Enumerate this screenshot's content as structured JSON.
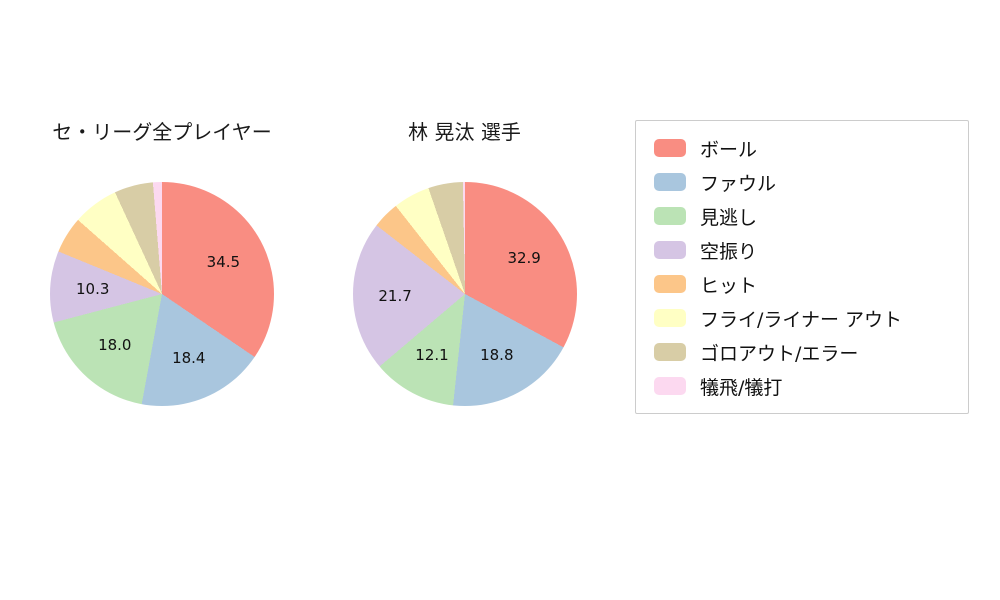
{
  "palette": [
    "#f98d82",
    "#a9c6de",
    "#bbe3b5",
    "#d5c5e4",
    "#fcc689",
    "#ffffc4",
    "#d8cda6",
    "#fcd9f0"
  ],
  "legend": {
    "items": [
      {
        "label": "ボール",
        "color": "#f98d82"
      },
      {
        "label": "ファウル",
        "color": "#a9c6de"
      },
      {
        "label": "見逃し",
        "color": "#bbe3b5"
      },
      {
        "label": "空振り",
        "color": "#d5c5e4"
      },
      {
        "label": "ヒット",
        "color": "#fcc689"
      },
      {
        "label": "フライ/ライナー アウト",
        "color": "#ffffc4"
      },
      {
        "label": "ゴロアウト/エラー",
        "color": "#d8cda6"
      },
      {
        "label": "犠飛/犠打",
        "color": "#fcd9f0"
      }
    ]
  },
  "chart_data": [
    {
      "type": "pie",
      "title": "セ・リーグ全プレイヤー",
      "labels": [
        "ボール",
        "ファウル",
        "見逃し",
        "空振り",
        "ヒット",
        "フライ/ライナー アウト",
        "ゴロアウト/エラー",
        "犠飛/犠打"
      ],
      "values": [
        34.5,
        18.4,
        18.0,
        10.3,
        5.3,
        6.6,
        5.6,
        1.3
      ],
      "display_values": [
        "34.5",
        "18.4",
        "18.0",
        "10.3",
        "",
        "",
        "",
        ""
      ],
      "start_angle_deg": 0,
      "direction": "clockwise"
    },
    {
      "type": "pie",
      "title": "林 晃汰 選手",
      "labels": [
        "ボール",
        "ファウル",
        "見逃し",
        "空振り",
        "ヒット",
        "フライ/ライナー アウト",
        "ゴロアウト/エラー",
        "犠飛/犠打"
      ],
      "values": [
        32.9,
        18.8,
        12.1,
        21.7,
        3.9,
        5.3,
        5.0,
        0.3
      ],
      "display_values": [
        "32.9",
        "18.8",
        "12.1",
        "21.7",
        "",
        "",
        "",
        ""
      ],
      "start_angle_deg": 0,
      "direction": "clockwise"
    }
  ]
}
